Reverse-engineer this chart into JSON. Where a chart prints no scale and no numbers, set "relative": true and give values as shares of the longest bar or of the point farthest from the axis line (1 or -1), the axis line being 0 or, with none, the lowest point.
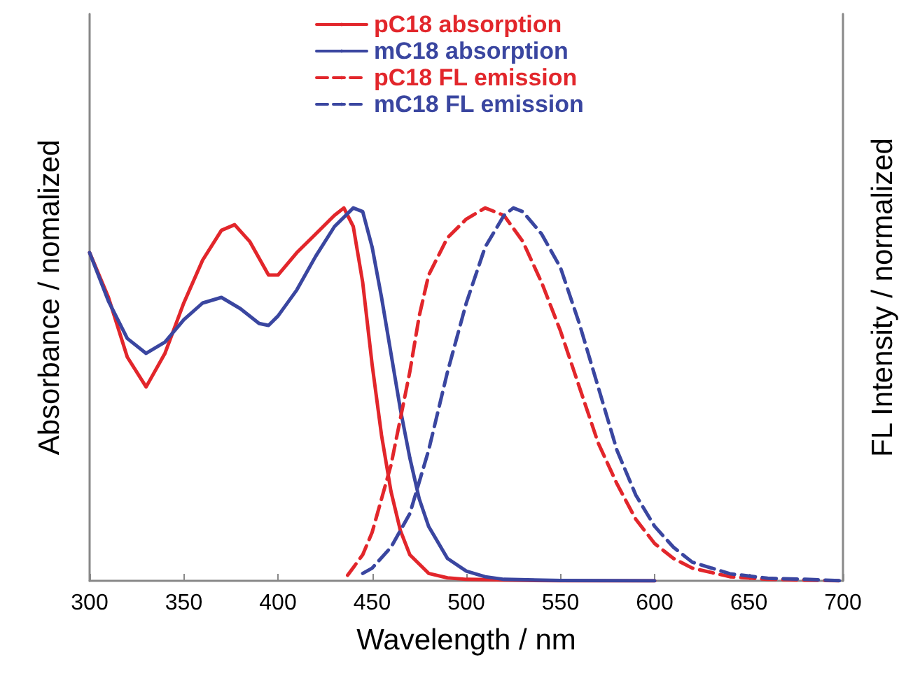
{
  "chart_data": {
    "type": "line",
    "xlabel": "Wavelength / nm",
    "ylabel": "Absorbance / nomalized",
    "y2label": "FL Intensity / normalized",
    "relative": true,
    "xlim": [
      300,
      700
    ],
    "xticks": [
      300,
      350,
      400,
      450,
      500,
      550,
      600,
      650,
      700
    ],
    "tick_labels": "x",
    "grid": false,
    "legend": "top",
    "marker": "none",
    "series": [
      {
        "name": "pC18 absorption",
        "color": "#e2262b",
        "line_style": "solid",
        "x": [
          300,
          310,
          320,
          330,
          340,
          350,
          360,
          370,
          377,
          385,
          395,
          400,
          410,
          420,
          430,
          435,
          440,
          445,
          450,
          455,
          460,
          465,
          470,
          480,
          490,
          500,
          550,
          600
        ],
        "values": [
          0.88,
          0.76,
          0.6,
          0.52,
          0.61,
          0.745,
          0.86,
          0.94,
          0.955,
          0.91,
          0.82,
          0.82,
          0.88,
          0.93,
          0.98,
          1,
          0.95,
          0.8,
          0.58,
          0.39,
          0.24,
          0.135,
          0.07,
          0.02,
          0.008,
          0.004,
          0,
          0
        ]
      },
      {
        "name": "mC18 absorption",
        "color": "#3a46a0",
        "line_style": "solid",
        "x": [
          300,
          310,
          320,
          330,
          340,
          350,
          360,
          370,
          380,
          390,
          395,
          400,
          410,
          420,
          430,
          440,
          445,
          450,
          455,
          460,
          465,
          470,
          475,
          480,
          490,
          500,
          510,
          520,
          550,
          600
        ],
        "values": [
          0.88,
          0.75,
          0.65,
          0.61,
          0.64,
          0.7,
          0.745,
          0.76,
          0.73,
          0.69,
          0.685,
          0.71,
          0.78,
          0.87,
          0.95,
          1,
          0.99,
          0.895,
          0.76,
          0.61,
          0.46,
          0.33,
          0.22,
          0.146,
          0.06,
          0.026,
          0.011,
          0.004,
          0.001,
          0
        ]
      },
      {
        "name": "pC18 FL emission",
        "color": "#e2262b",
        "line_style": "dashed",
        "axis": "y2",
        "x": [
          437,
          445,
          450,
          460,
          470,
          475,
          480,
          490,
          500,
          510,
          520,
          530,
          540,
          550,
          560,
          570,
          580,
          590,
          600,
          610,
          620,
          640,
          660,
          700
        ],
        "values": [
          0.015,
          0.07,
          0.13,
          0.31,
          0.56,
          0.71,
          0.82,
          0.92,
          0.97,
          1,
          0.98,
          0.91,
          0.8,
          0.67,
          0.52,
          0.37,
          0.26,
          0.165,
          0.1,
          0.06,
          0.034,
          0.011,
          0.004,
          0
        ]
      },
      {
        "name": "mC18 FL emission",
        "color": "#3a46a0",
        "line_style": "dashed",
        "axis": "y2",
        "x": [
          445,
          450,
          460,
          470,
          480,
          490,
          500,
          510,
          520,
          525,
          530,
          540,
          550,
          560,
          570,
          580,
          590,
          600,
          610,
          620,
          640,
          660,
          680,
          700
        ],
        "values": [
          0.02,
          0.034,
          0.09,
          0.18,
          0.35,
          0.56,
          0.745,
          0.895,
          0.98,
          1,
          0.99,
          0.93,
          0.84,
          0.69,
          0.52,
          0.35,
          0.23,
          0.146,
          0.09,
          0.05,
          0.019,
          0.007,
          0.004,
          0
        ]
      }
    ]
  }
}
